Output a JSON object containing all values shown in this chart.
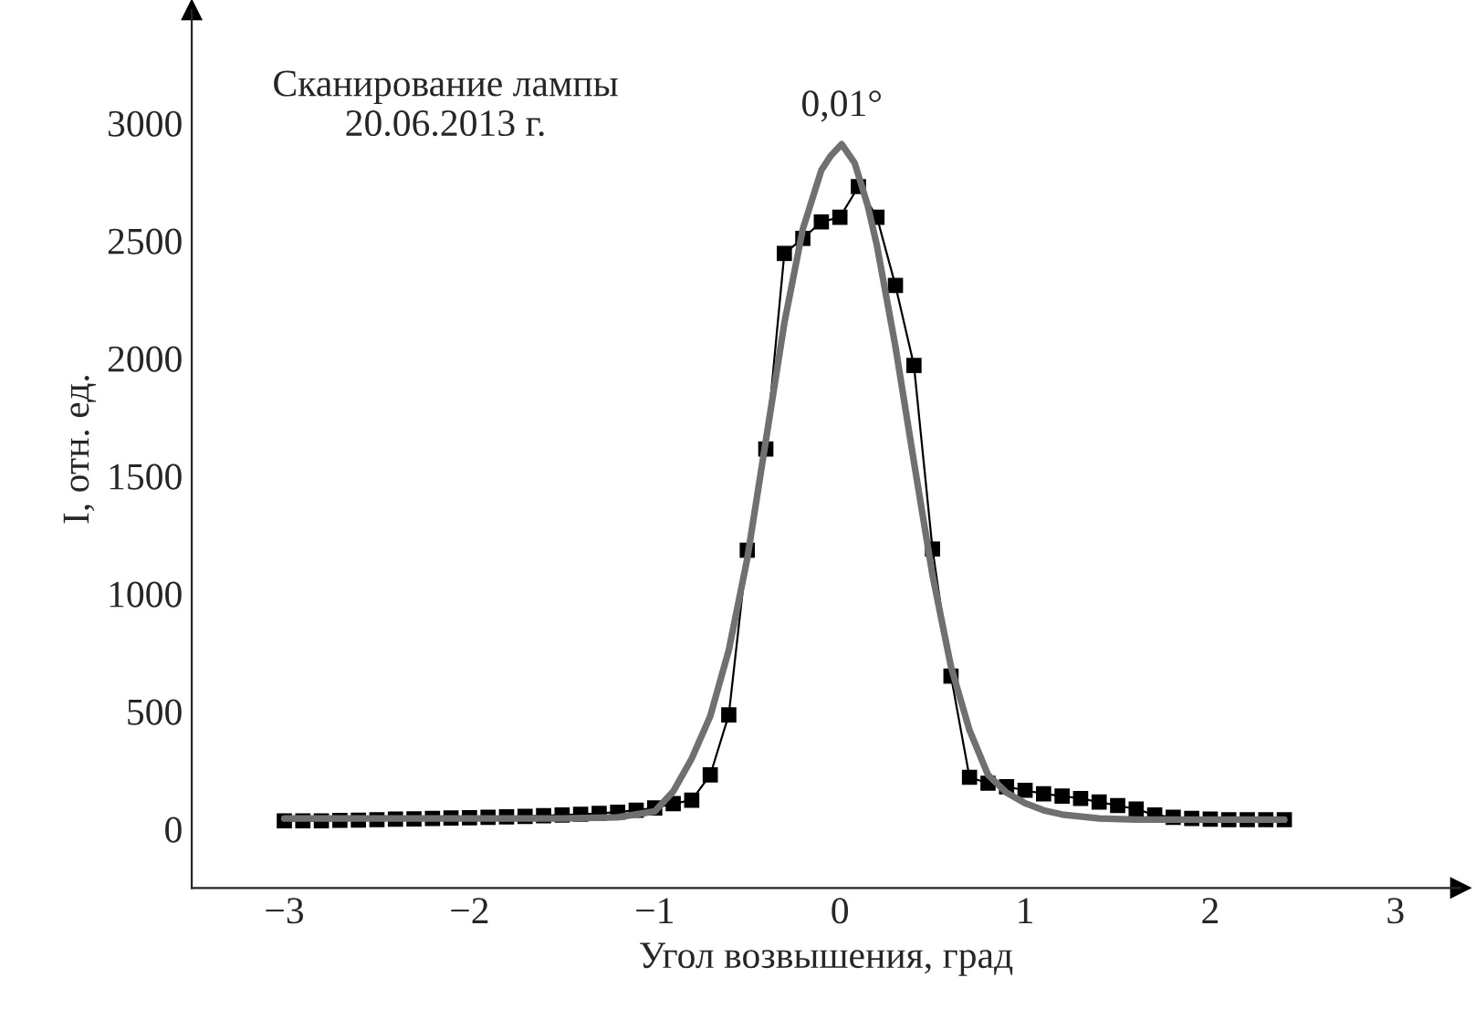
{
  "chart_data": {
    "type": "line",
    "xlabel": "Угол возвышения, град",
    "ylabel": "I, отн. ед.",
    "xlim": [
      -3.5,
      3.35
    ],
    "ylim": [
      -250,
      3480
    ],
    "xticks": [
      {
        "value": -3,
        "label": "−3"
      },
      {
        "value": -2,
        "label": "−2"
      },
      {
        "value": -1,
        "label": "−1"
      },
      0,
      1,
      2,
      3
    ],
    "yticks": [
      0,
      500,
      1000,
      1500,
      2000,
      2500,
      3000
    ],
    "grid": false,
    "legend": false,
    "annotations": [
      "Сканирование лампы\n20.06.2013 г.",
      {
        "text": "0,01°",
        "x": 0.01,
        "y": 2910
      }
    ],
    "series": [
      {
        "color": "#000000",
        "marker": "square",
        "line_style": "solid",
        "x": [
          -3.0,
          -2.9,
          -2.8,
          -2.7,
          -2.6,
          -2.5,
          -2.4,
          -2.3,
          -2.2,
          -2.1,
          -2.0,
          -1.9,
          -1.8,
          -1.7,
          -1.6,
          -1.5,
          -1.4,
          -1.3,
          -1.2,
          -1.1,
          -1.0,
          -0.9,
          -0.8,
          -0.7,
          -0.6,
          -0.5,
          -0.4,
          -0.3,
          -0.2,
          -0.1,
          0.0,
          0.1,
          0.2,
          0.3,
          0.4,
          0.5,
          0.6,
          0.7,
          0.8,
          0.9,
          1.0,
          1.1,
          1.2,
          1.3,
          1.4,
          1.5,
          1.6,
          1.7,
          1.8,
          1.9,
          2.0,
          2.1,
          2.2,
          2.3,
          2.4
        ],
        "values": [
          35,
          35,
          35,
          37,
          38,
          40,
          42,
          43,
          45,
          47,
          48,
          50,
          52,
          54,
          57,
          60,
          63,
          67,
          72,
          80,
          90,
          108,
          123,
          230,
          485,
          1185,
          1615,
          2446,
          2510,
          2580,
          2600,
          2730,
          2600,
          2310,
          1970,
          1190,
          650,
          220,
          195,
          180,
          165,
          150,
          140,
          130,
          115,
          100,
          85,
          60,
          50,
          45,
          42,
          40,
          40,
          40,
          40
        ]
      },
      {
        "color": "#707070",
        "marker": "none",
        "line_style": "solid",
        "x": [
          -3.0,
          -2.0,
          -1.5,
          -1.2,
          -1.0,
          -0.9,
          -0.8,
          -0.7,
          -0.6,
          -0.5,
          -0.4,
          -0.3,
          -0.2,
          -0.1,
          -0.05,
          0.01,
          0.08,
          0.15,
          0.2,
          0.3,
          0.4,
          0.5,
          0.6,
          0.7,
          0.8,
          0.9,
          1.0,
          1.1,
          1.2,
          1.4,
          1.6,
          2.0,
          2.4
        ],
        "values": [
          45,
          45,
          45,
          50,
          75,
          160,
          300,
          480,
          760,
          1150,
          1650,
          2150,
          2550,
          2800,
          2860,
          2910,
          2830,
          2650,
          2480,
          2050,
          1560,
          1080,
          690,
          420,
          230,
          155,
          110,
          80,
          62,
          45,
          40,
          40,
          40
        ]
      }
    ]
  }
}
